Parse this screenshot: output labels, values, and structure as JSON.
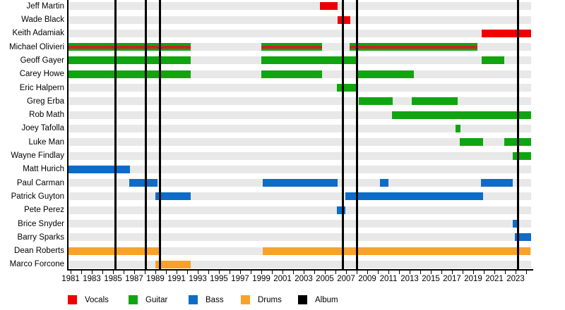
{
  "chart_data": {
    "type": "timeline",
    "title": "",
    "x_axis": {
      "start_year": 1981,
      "end_year": 2024.5,
      "first_tick_year": 1981,
      "last_tick_year": 2024,
      "tick_step_years": 1,
      "label_years": [
        1981,
        1983,
        1985,
        1987,
        1989,
        1991,
        1993,
        1995,
        1997,
        1999,
        2001,
        2003,
        2005,
        2007,
        2009,
        2011,
        2013,
        2015,
        2017,
        2019,
        2021,
        2023
      ]
    },
    "albums": {
      "label": "Album",
      "years": [
        1985.2,
        1988.1,
        1989.4,
        2006.7,
        2008.0,
        2023.2
      ]
    },
    "members": [
      {
        "name": "Jeff Martin",
        "role": "vocals",
        "spans": [
          [
            2004.5,
            2006.2
          ]
        ]
      },
      {
        "name": "Wade Black",
        "role": "vocals",
        "spans": [
          [
            2006.2,
            2007.4
          ]
        ]
      },
      {
        "name": "Keith Adamiak",
        "role": "vocals",
        "spans": [
          [
            2019.8,
            2024.5
          ]
        ]
      },
      {
        "name": "Michael Olivieri",
        "role": "guitar+vocals",
        "spans": [
          [
            1981,
            1992.3
          ],
          [
            1999,
            2004.7
          ],
          [
            2007.3,
            2019.4
          ]
        ]
      },
      {
        "name": "Geoff Gayer",
        "role": "guitar",
        "spans": [
          [
            1981,
            1992.3
          ],
          [
            1999,
            2008.1
          ],
          [
            2019.8,
            2021.9
          ]
        ]
      },
      {
        "name": "Carey Howe",
        "role": "guitar",
        "spans": [
          [
            1981,
            1992.3
          ],
          [
            1999,
            2004.7
          ],
          [
            2008.1,
            2013.4
          ]
        ]
      },
      {
        "name": "Eric Halpern",
        "role": "guitar",
        "spans": [
          [
            2006.1,
            2008.1
          ]
        ]
      },
      {
        "name": "Greg Erba",
        "role": "guitar",
        "spans": [
          [
            2008.2,
            2011.4
          ],
          [
            2013.2,
            2017.5
          ]
        ]
      },
      {
        "name": "Rob Math",
        "role": "guitar",
        "spans": [
          [
            2011.3,
            2024.5
          ]
        ]
      },
      {
        "name": "Joey Tafolla",
        "role": "guitar",
        "spans": [
          [
            2017.3,
            2017.8
          ]
        ]
      },
      {
        "name": "Luke Man",
        "role": "guitar",
        "spans": [
          [
            2017.7,
            2019.9
          ],
          [
            2021.9,
            2024.5
          ]
        ]
      },
      {
        "name": "Wayne Findlay",
        "role": "guitar",
        "spans": [
          [
            2022.7,
            2024.5
          ]
        ]
      },
      {
        "name": "Matt Hurich",
        "role": "bass",
        "spans": [
          [
            1981,
            1986.6
          ]
        ]
      },
      {
        "name": "Paul Carman",
        "role": "bass",
        "spans": [
          [
            1986.5,
            1989.2
          ],
          [
            1999.1,
            2006.2
          ],
          [
            2010.2,
            2011.0
          ],
          [
            2019.7,
            2022.7
          ]
        ]
      },
      {
        "name": "Patrick Guyton",
        "role": "bass",
        "spans": [
          [
            1989.0,
            1992.3
          ],
          [
            2006.9,
            2019.9
          ]
        ]
      },
      {
        "name": "Pete Perez",
        "role": "bass",
        "spans": [
          [
            2006.1,
            2006.9
          ]
        ]
      },
      {
        "name": "Brice Snyder",
        "role": "bass",
        "spans": [
          [
            2022.7,
            2023.1
          ]
        ]
      },
      {
        "name": "Barry Sparks",
        "role": "bass",
        "spans": [
          [
            2022.9,
            2024.5
          ]
        ]
      },
      {
        "name": "Dean Roberts",
        "role": "drums",
        "spans": [
          [
            1981,
            1989.3
          ],
          [
            1999.1,
            2024.4
          ]
        ]
      },
      {
        "name": "Marco Forcone",
        "role": "drums",
        "spans": [
          [
            1989.0,
            1992.3
          ]
        ]
      }
    ],
    "legend": [
      {
        "label": "Vocals",
        "color": "#ee0000"
      },
      {
        "label": "Guitar",
        "color": "#10a510"
      },
      {
        "label": "Bass",
        "color": "#0d6cc8"
      },
      {
        "label": "Drums",
        "color": "#f9a22a"
      },
      {
        "label": "Album",
        "color": "#000000"
      }
    ],
    "colors": {
      "vocals": "#ee0000",
      "vocals_stripe": "#cc2222",
      "guitar": "#10a510",
      "bass": "#0d6cc8",
      "drums": "#f9a22a",
      "album_line": "#000000",
      "row_band": "#e8e8e8"
    },
    "legend_position": "bottom"
  }
}
